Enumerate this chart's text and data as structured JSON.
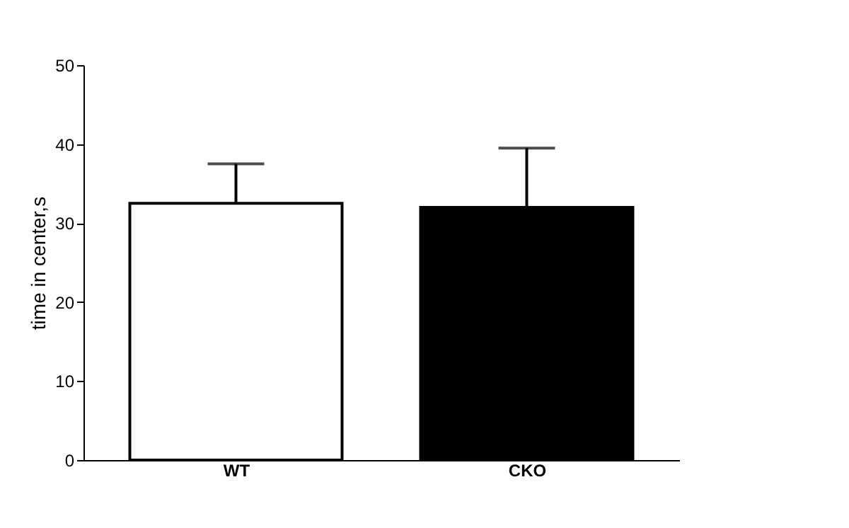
{
  "chart_data": {
    "type": "bar",
    "ylabel": "time in center,s",
    "categories": [
      "WT",
      "CKO"
    ],
    "values": [
      32.5,
      32
    ],
    "colors": [
      "#ffffff",
      "#000000"
    ],
    "errors": [
      [
        32.5,
        37.5
      ],
      [
        32,
        39.5
      ]
    ],
    "ylim": [
      0,
      50
    ],
    "yticks": [
      0,
      10,
      20,
      30,
      40,
      50
    ],
    "grid": false
  }
}
